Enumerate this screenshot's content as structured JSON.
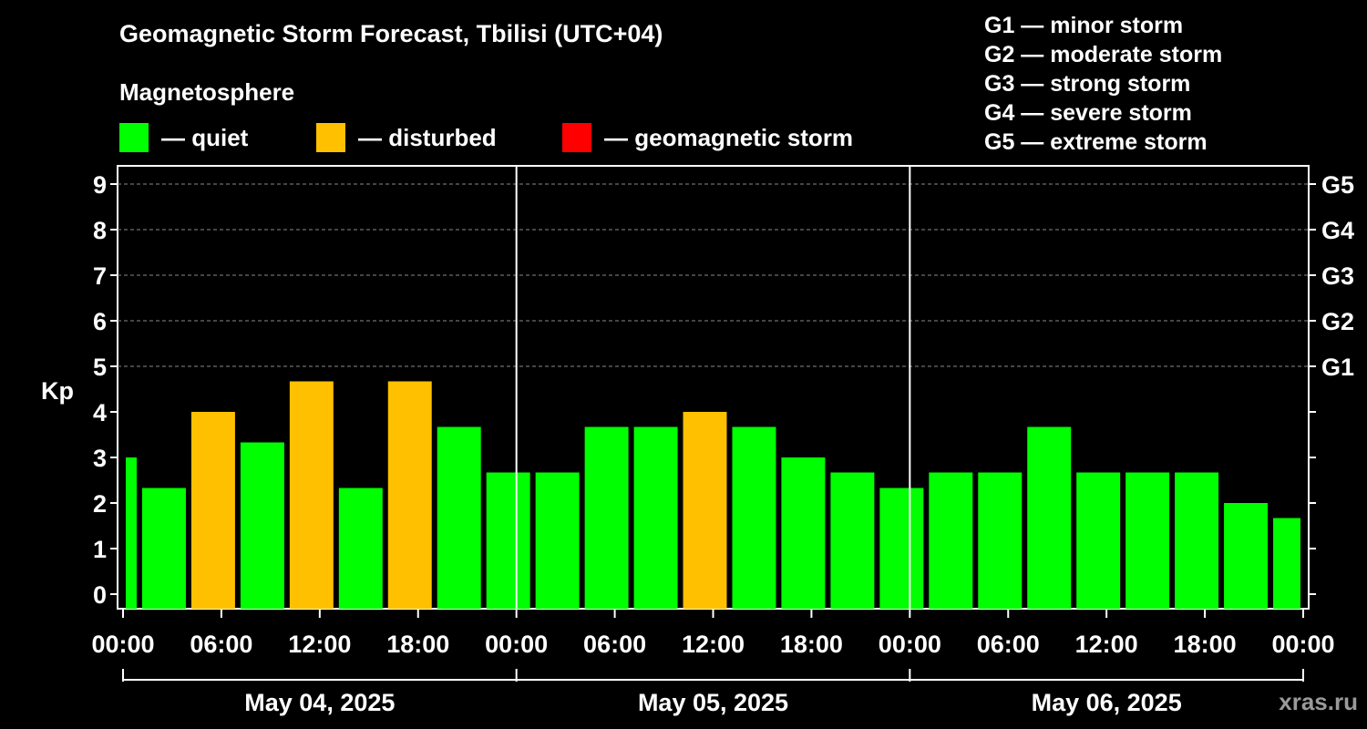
{
  "chart_data": {
    "type": "bar",
    "title": "Geomagnetic Storm Forecast, Tbilisi (UTC+04)",
    "subtitle": "Magnetosphere",
    "ylabel": "Kp",
    "ylim": [
      0,
      9
    ],
    "yticks": [
      "0",
      "1",
      "2",
      "3",
      "4",
      "5",
      "6",
      "7",
      "8",
      "9"
    ],
    "storm_levels": [
      {
        "label": "G1",
        "kp": 5
      },
      {
        "label": "G2",
        "kp": 6
      },
      {
        "label": "G3",
        "kp": 7
      },
      {
        "label": "G4",
        "kp": 8
      },
      {
        "label": "G5",
        "kp": 9
      }
    ],
    "legend": [
      {
        "label": "— quiet",
        "color": "#00ff00"
      },
      {
        "label": "— disturbed",
        "color": "#ffc000"
      },
      {
        "label": "— geomagnetic storm",
        "color": "#ff0000"
      }
    ],
    "storm_scale": [
      "G1 — minor storm",
      "G2 — moderate storm",
      "G3 — strong storm",
      "G4 — severe storm",
      "G5 — extreme storm"
    ],
    "xticks": [
      "00:00",
      "06:00",
      "12:00",
      "18:00",
      "00:00",
      "06:00",
      "12:00",
      "18:00",
      "00:00",
      "06:00",
      "12:00",
      "18:00",
      "00:00"
    ],
    "days": [
      "May 04, 2025",
      "May 05, 2025",
      "May 06, 2025"
    ],
    "x_hours": [
      0,
      72
    ],
    "series": [
      {
        "start_hour": 0,
        "end_hour": 1,
        "kp": 3.0,
        "status": "quiet"
      },
      {
        "start_hour": 1,
        "end_hour": 4,
        "kp": 2.33,
        "status": "quiet"
      },
      {
        "start_hour": 4,
        "end_hour": 7,
        "kp": 4.0,
        "status": "disturbed"
      },
      {
        "start_hour": 7,
        "end_hour": 10,
        "kp": 3.33,
        "status": "quiet"
      },
      {
        "start_hour": 10,
        "end_hour": 13,
        "kp": 4.67,
        "status": "disturbed"
      },
      {
        "start_hour": 13,
        "end_hour": 16,
        "kp": 2.33,
        "status": "quiet"
      },
      {
        "start_hour": 16,
        "end_hour": 19,
        "kp": 4.67,
        "status": "disturbed"
      },
      {
        "start_hour": 19,
        "end_hour": 22,
        "kp": 3.67,
        "status": "quiet"
      },
      {
        "start_hour": 22,
        "end_hour": 25,
        "kp": 2.67,
        "status": "quiet"
      },
      {
        "start_hour": 25,
        "end_hour": 28,
        "kp": 2.67,
        "status": "quiet"
      },
      {
        "start_hour": 28,
        "end_hour": 31,
        "kp": 3.67,
        "status": "quiet"
      },
      {
        "start_hour": 31,
        "end_hour": 34,
        "kp": 3.67,
        "status": "quiet"
      },
      {
        "start_hour": 34,
        "end_hour": 37,
        "kp": 4.0,
        "status": "disturbed"
      },
      {
        "start_hour": 37,
        "end_hour": 40,
        "kp": 3.67,
        "status": "quiet"
      },
      {
        "start_hour": 40,
        "end_hour": 43,
        "kp": 3.0,
        "status": "quiet"
      },
      {
        "start_hour": 43,
        "end_hour": 46,
        "kp": 2.67,
        "status": "quiet"
      },
      {
        "start_hour": 46,
        "end_hour": 49,
        "kp": 2.33,
        "status": "quiet"
      },
      {
        "start_hour": 49,
        "end_hour": 52,
        "kp": 2.67,
        "status": "quiet"
      },
      {
        "start_hour": 52,
        "end_hour": 55,
        "kp": 2.67,
        "status": "quiet"
      },
      {
        "start_hour": 55,
        "end_hour": 58,
        "kp": 3.67,
        "status": "quiet"
      },
      {
        "start_hour": 58,
        "end_hour": 61,
        "kp": 2.67,
        "status": "quiet"
      },
      {
        "start_hour": 61,
        "end_hour": 64,
        "kp": 2.67,
        "status": "quiet"
      },
      {
        "start_hour": 64,
        "end_hour": 67,
        "kp": 2.67,
        "status": "quiet"
      },
      {
        "start_hour": 67,
        "end_hour": 70,
        "kp": 2.0,
        "status": "quiet"
      },
      {
        "start_hour": 70,
        "end_hour": 72,
        "kp": 1.67,
        "status": "quiet"
      }
    ],
    "status_colors": {
      "quiet": "#00ff00",
      "disturbed": "#ffc000",
      "storm": "#ff0000"
    }
  },
  "watermark": "xras.ru"
}
